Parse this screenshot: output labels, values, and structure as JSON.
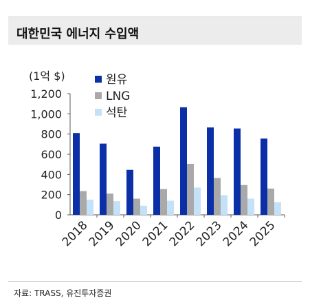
{
  "title": "대한민국 에너지 수입액",
  "source": "자료: TRASS, 유진투자증권",
  "colors": {
    "crude": "#0b2fa6",
    "lng": "#a9a9a9",
    "coal": "#c4e1f8",
    "axis": "#555555",
    "text": "#222222"
  },
  "chart_data": {
    "type": "bar",
    "unit_label": "(1억 $)",
    "categories": [
      "2018",
      "2019",
      "2020",
      "2021",
      "2022",
      "2023",
      "2024",
      "2025"
    ],
    "series": [
      {
        "name": "원유",
        "values": [
          810,
          705,
          445,
          675,
          1065,
          865,
          855,
          755
        ]
      },
      {
        "name": "LNG",
        "values": [
          235,
          210,
          160,
          255,
          505,
          365,
          295,
          260
        ]
      },
      {
        "name": "석탄",
        "values": [
          150,
          135,
          90,
          140,
          270,
          195,
          160,
          125
        ]
      }
    ],
    "ylim": [
      0,
      1200
    ],
    "yticks": [
      "0",
      "200",
      "400",
      "600",
      "800",
      "1,000",
      "1,200"
    ],
    "ytick_values": [
      0,
      200,
      400,
      600,
      800,
      1000,
      1200
    ],
    "grid": false,
    "legend_position": "top-left"
  }
}
